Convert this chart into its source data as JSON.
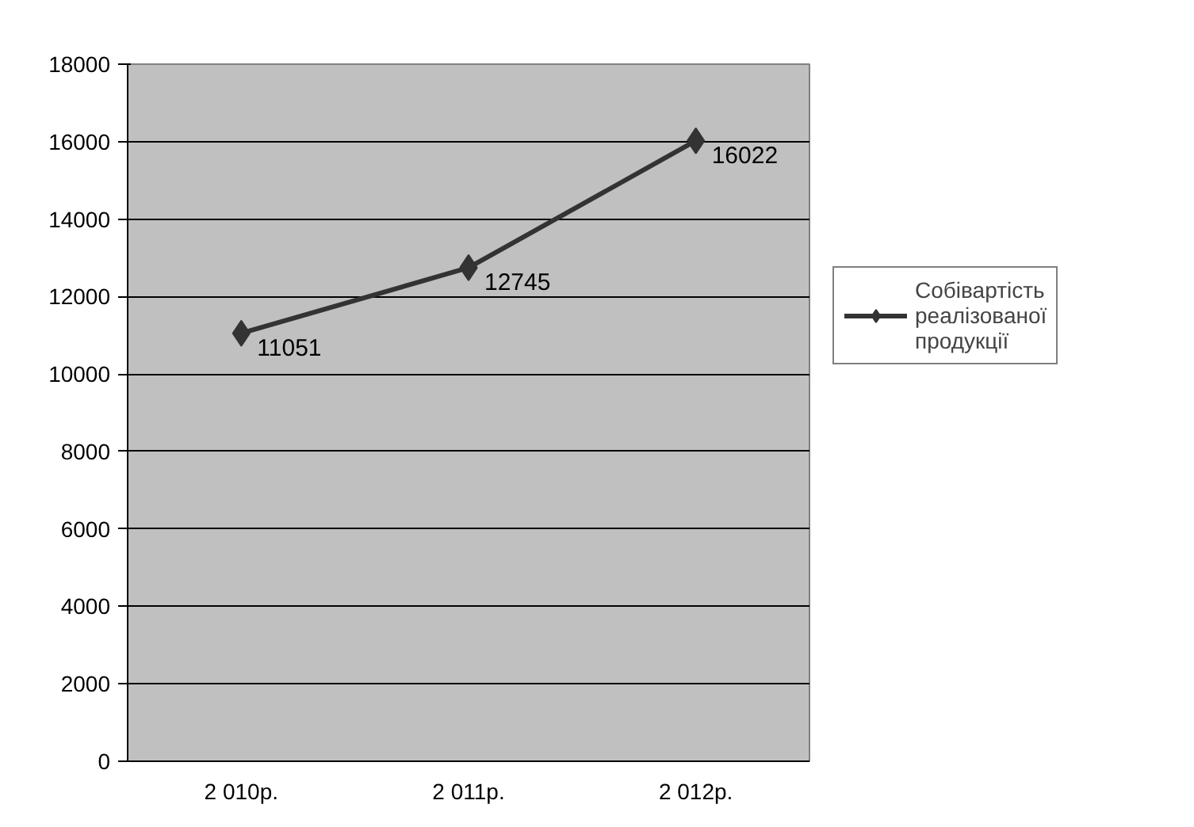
{
  "chart_data": {
    "type": "line",
    "categories": [
      "2 010р.",
      "2 011р.",
      "2 012р."
    ],
    "series": [
      {
        "name": "Собівартість реалізованої продукції",
        "color": "#333333",
        "values": [
          11051,
          12745,
          16022
        ]
      }
    ],
    "ylim": [
      0,
      18000
    ],
    "yticks": [
      0,
      2000,
      4000,
      6000,
      8000,
      10000,
      12000,
      14000,
      16000,
      18000
    ],
    "grid": "y",
    "legend": "right",
    "marker": "diamond",
    "line_style": "solid",
    "data_labels": true
  }
}
